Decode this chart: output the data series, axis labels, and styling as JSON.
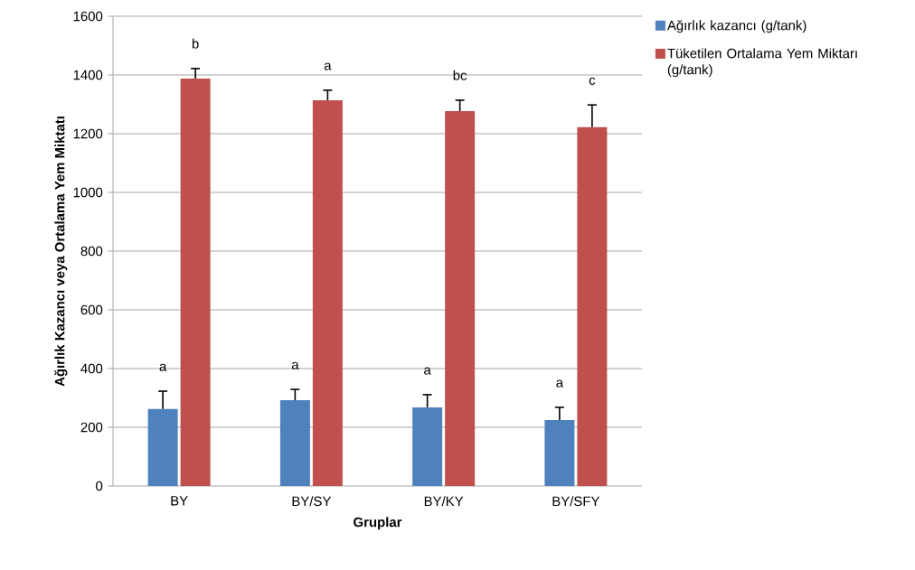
{
  "chart_data": {
    "type": "bar",
    "xlabel": "Gruplar",
    "ylabel": "Ağırlık Kazancı veya Ortalama Yem Miktatı",
    "categories": [
      "BY",
      "BY/SY",
      "BY/KY",
      "BY/SFY"
    ],
    "series": [
      {
        "name": "Ağırlık kazancı (g/tank)",
        "color": "#4f81bd",
        "values": [
          262,
          292,
          268,
          225
        ],
        "errors": [
          [
            262,
            323
          ],
          [
            292,
            329
          ],
          [
            268,
            311
          ],
          [
            225,
            268
          ]
        ]
      },
      {
        "name": "Tüketilen Ortalama Yem Miktarı (g/tank)",
        "color": "#c0504d",
        "values": [
          1388,
          1314,
          1277,
          1222
        ],
        "errors": [
          [
            1388,
            1422
          ],
          [
            1314,
            1348
          ],
          [
            1277,
            1314
          ],
          [
            1222,
            1298
          ]
        ]
      }
    ],
    "ylim": [
      0,
      1600
    ],
    "yticks": [
      0,
      200,
      400,
      600,
      800,
      1000,
      1200,
      1400,
      1600
    ],
    "grid": "y",
    "legend": "right",
    "annotations": [
      "a",
      "b",
      "a",
      "a",
      "a",
      "bc",
      "a",
      "c"
    ]
  }
}
